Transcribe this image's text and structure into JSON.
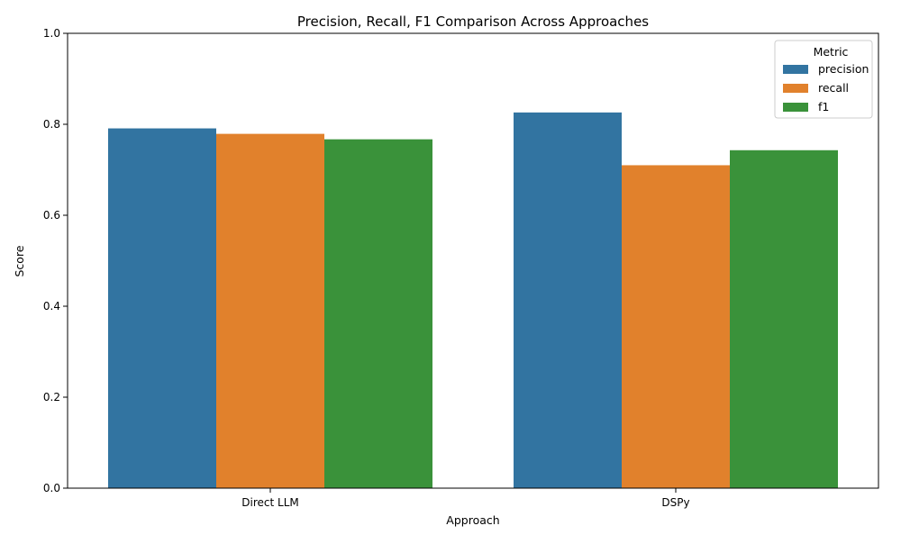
{
  "chart_data": {
    "type": "bar",
    "title": "Precision, Recall, F1 Comparison Across Approaches",
    "xlabel": "Approach",
    "ylabel": "Score",
    "categories": [
      "Direct LLM",
      "DSPy"
    ],
    "series": [
      {
        "name": "precision",
        "color": "#3274a1",
        "values": [
          0.791,
          0.826
        ]
      },
      {
        "name": "recall",
        "color": "#e1812c",
        "values": [
          0.779,
          0.71
        ]
      },
      {
        "name": "f1",
        "color": "#3a923a",
        "values": [
          0.767,
          0.743
        ]
      }
    ],
    "ylim": [
      0,
      1
    ],
    "yticks": [
      "0.0",
      "0.2",
      "0.4",
      "0.6",
      "0.8",
      "1.0"
    ],
    "grid": false,
    "legend": {
      "title": "Metric",
      "placement": "top-right"
    }
  }
}
